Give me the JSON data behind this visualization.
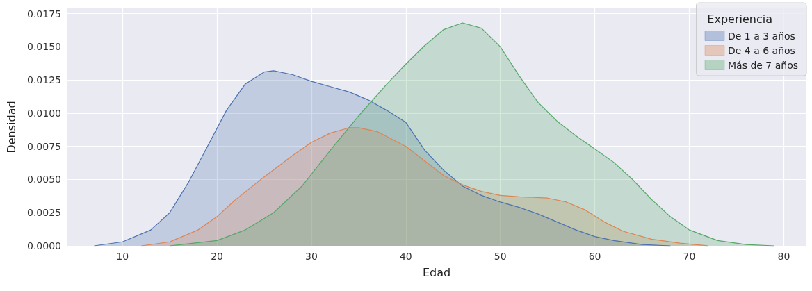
{
  "chart_data": {
    "type": "area",
    "xlabel": "Edad",
    "ylabel": "Densidad",
    "legend_title": "Experiencia",
    "legend": "top right",
    "grid": true,
    "marker": "none",
    "line_style": "solid",
    "xlim": [
      4.1,
      82.4
    ],
    "xticks": [
      10,
      20,
      30,
      40,
      50,
      60,
      70,
      80
    ],
    "ylim": [
      0,
      0.0179
    ],
    "yticks": [
      {
        "value": 0,
        "label": "0.0000"
      },
      {
        "value": 0.0025,
        "label": "0.0025"
      },
      {
        "value": 0.005,
        "label": "0.0050"
      },
      {
        "value": 0.0075,
        "label": "0.0075"
      },
      {
        "value": 0.01,
        "label": "0.0100"
      },
      {
        "value": 0.0125,
        "label": "0.0125"
      },
      {
        "value": 0.015,
        "label": "0.0150"
      },
      {
        "value": 0.0175,
        "label": "0.0175"
      }
    ],
    "series": [
      {
        "name": "De 1 a 3 años",
        "color": "#4c72b0",
        "x": [
          7,
          10,
          13,
          15,
          17,
          19,
          21,
          23,
          25,
          26,
          28,
          30,
          32,
          34,
          36,
          38,
          40,
          42,
          44,
          46,
          48,
          50,
          52,
          54,
          56,
          58,
          60,
          62,
          65,
          68
        ],
        "values": [
          0,
          0.0003,
          0.0012,
          0.0025,
          0.0048,
          0.0075,
          0.0102,
          0.0122,
          0.0131,
          0.0132,
          0.0129,
          0.0124,
          0.012,
          0.0116,
          0.011,
          0.0102,
          0.0093,
          0.0072,
          0.0057,
          0.0045,
          0.0038,
          0.0033,
          0.0029,
          0.0024,
          0.0018,
          0.0012,
          0.0007,
          0.0004,
          0.0001,
          0
        ]
      },
      {
        "name": "De 4 a 6 años",
        "color": "#dd8452",
        "x": [
          12,
          15,
          18,
          20,
          22,
          25,
          28,
          30,
          32,
          34,
          35,
          37,
          40,
          42,
          44,
          46,
          48,
          50,
          52,
          55,
          57,
          59,
          61,
          63,
          66,
          69,
          72
        ],
        "values": [
          0,
          0.0003,
          0.0012,
          0.0022,
          0.0035,
          0.0052,
          0.0068,
          0.0078,
          0.0085,
          0.0089,
          0.0089,
          0.0086,
          0.0075,
          0.0064,
          0.0053,
          0.0046,
          0.0041,
          0.0038,
          0.0037,
          0.0036,
          0.0033,
          0.0027,
          0.0018,
          0.0011,
          0.0005,
          0.0002,
          0
        ]
      },
      {
        "name": "Más de 7 años",
        "color": "#55a868",
        "x": [
          15,
          20,
          23,
          26,
          29,
          32,
          35,
          38,
          40,
          42,
          44,
          46,
          48,
          50,
          52,
          54,
          56,
          58,
          60,
          62,
          64,
          66,
          68,
          70,
          73,
          76,
          79
        ],
        "values": [
          0,
          0.0004,
          0.0012,
          0.0025,
          0.0045,
          0.0072,
          0.0098,
          0.0122,
          0.0137,
          0.0151,
          0.0163,
          0.0168,
          0.0164,
          0.015,
          0.0128,
          0.0108,
          0.0094,
          0.0083,
          0.0073,
          0.0063,
          0.005,
          0.0035,
          0.0022,
          0.0012,
          0.0004,
          0.0001,
          0
        ]
      }
    ]
  }
}
